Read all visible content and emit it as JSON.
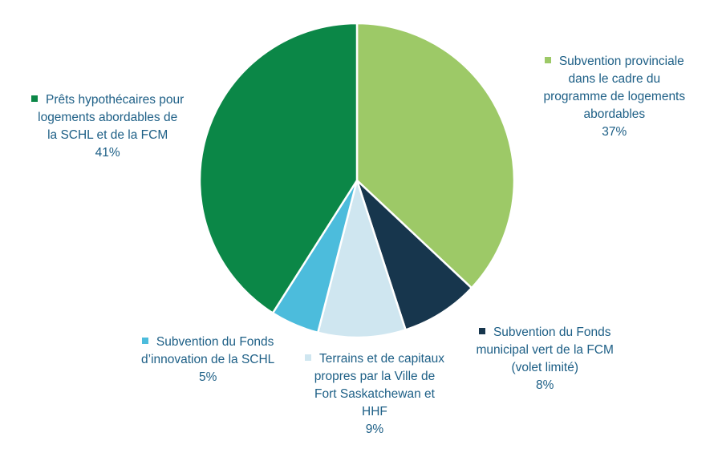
{
  "chart_data": {
    "type": "pie",
    "start_angle_deg": 0,
    "direction": "clockwise",
    "slices": [
      {
        "lines": [
          "Subvention provinciale",
          "dans le cadre du",
          "programme de logements",
          "abordables"
        ],
        "value": 37,
        "value_label": "37%",
        "color": "#9dc967"
      },
      {
        "lines": [
          "Subvention du Fonds",
          "municipal vert de la FCM",
          "(volet limité)"
        ],
        "value": 8,
        "value_label": "8%",
        "color": "#17364d"
      },
      {
        "lines": [
          "Terrains et de capitaux",
          "propres par la Ville de",
          "Fort Saskatchewan et",
          "HHF"
        ],
        "value": 9,
        "value_label": "9%",
        "color": "#cfe6f0"
      },
      {
        "lines": [
          "Subvention du Fonds",
          "d’innovation de la SCHL"
        ],
        "value": 5,
        "value_label": "5%",
        "color": "#4cbcdc"
      },
      {
        "lines": [
          "Prêts hypothécaires pour",
          "logements abordables de",
          "la SCHL et de la FCM"
        ],
        "value": 41,
        "value_label": "41%",
        "color": "#0b8747"
      }
    ]
  }
}
